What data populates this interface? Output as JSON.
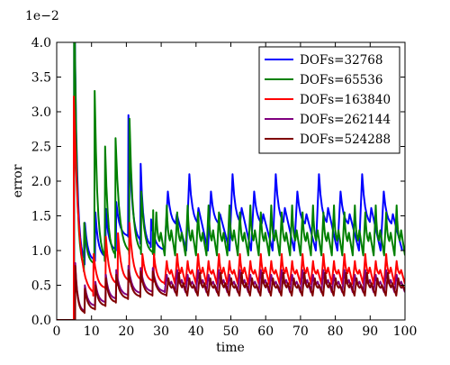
{
  "chart_data": {
    "type": "line",
    "xlabel": "time",
    "ylabel": "error",
    "y_offset_label": "1e−2",
    "xlim": [
      0,
      100
    ],
    "ylim": [
      0,
      4.0
    ],
    "x_ticks": [
      0,
      10,
      20,
      30,
      40,
      50,
      60,
      70,
      80,
      90,
      100
    ],
    "x_tick_labels": [
      "0",
      "10",
      "20",
      "30",
      "40",
      "50",
      "60",
      "70",
      "80",
      "90",
      "100"
    ],
    "y_ticks": [
      0,
      0.5,
      1.0,
      1.5,
      2.0,
      2.5,
      3.0,
      3.5,
      4.0
    ],
    "y_tick_labels": [
      "0.0",
      "0.5",
      "1.0",
      "1.5",
      "2.0",
      "2.5",
      "3.0",
      "3.5",
      "4.0"
    ],
    "grid": false,
    "legend_position": "top-right",
    "series": [
      {
        "name": "DOFs=32768",
        "color": "#0000ff",
        "baseline": [
          0,
          5
        ],
        "first_spike": 5.05,
        "early": {
          "times": [
            8,
            11,
            14,
            17,
            20.5,
            24,
            27
          ],
          "peaks": [
            1.4,
            1.55,
            1.6,
            1.7,
            2.95,
            2.25,
            1.45
          ],
          "mins": [
            0.8,
            0.85,
            0.9,
            1.0,
            1.2,
            1.1,
            1.05
          ]
        },
        "period": 6.2,
        "start": 31,
        "count": 11,
        "peak_a": 1.85,
        "peak_b": 2.1,
        "mid": 1.35,
        "min": 1.0
      },
      {
        "name": "DOFs=65536",
        "color": "#008000",
        "baseline": [
          0,
          5
        ],
        "first_spike": 5.05,
        "early": {
          "times": [
            7.8,
            10.8,
            13.8,
            16.8,
            20.8,
            24.2,
            27.6
          ],
          "peaks": [
            1.4,
            3.3,
            2.5,
            2.62,
            2.9,
            1.85,
            1.58
          ],
          "mins": [
            0.7,
            0.8,
            0.85,
            0.9,
            0.95,
            0.95,
            0.95
          ]
        },
        "period": 3.0,
        "start": 28,
        "count": 24,
        "peak_a": 1.55,
        "peak_b": 1.65,
        "mid": 1.1,
        "min": 0.93
      },
      {
        "name": "DOFs=163840",
        "color": "#ff0000",
        "baseline": [
          0,
          4.9
        ],
        "first_spike": 3.22,
        "early": {
          "times": [
            10.5,
            14,
            17.5,
            20.8,
            24.5,
            27.8
          ],
          "peaks": [
            0.95,
            1.2,
            1.25,
            1.4,
            0.95,
            0.95
          ],
          "mins": [
            0.35,
            0.45,
            0.5,
            0.55,
            0.55,
            0.55
          ]
        },
        "period": 3.0,
        "start": 31,
        "count": 23,
        "peak_a": 0.85,
        "peak_b": 0.95,
        "mid": 0.65,
        "min": 0.52
      },
      {
        "name": "DOFs=262144",
        "color": "#800080",
        "baseline": [
          0,
          5.3
        ],
        "first_spike": 0.82,
        "early": {
          "times": [
            8,
            11,
            14,
            17,
            20.5,
            24,
            27.5
          ],
          "peaks": [
            0.5,
            0.55,
            0.65,
            0.72,
            0.78,
            0.75,
            0.75
          ],
          "mins": [
            0.12,
            0.2,
            0.25,
            0.3,
            0.35,
            0.38,
            0.4
          ]
        },
        "period": 3.0,
        "start": 31,
        "count": 23,
        "peak_a": 0.65,
        "peak_b": 0.72,
        "mid": 0.5,
        "min": 0.4
      },
      {
        "name": "DOFs=524288",
        "color": "#800000",
        "baseline": [
          0,
          5.3
        ],
        "first_spike": 0.78,
        "early": {
          "times": [
            8,
            11,
            14,
            17,
            20.5,
            24,
            27.5
          ],
          "peaks": [
            0.45,
            0.5,
            0.6,
            0.65,
            0.72,
            0.7,
            0.7
          ],
          "mins": [
            0.1,
            0.15,
            0.2,
            0.25,
            0.3,
            0.33,
            0.35
          ]
        },
        "period": 3.0,
        "start": 31.5,
        "count": 23,
        "peak_a": 0.6,
        "peak_b": 0.68,
        "mid": 0.45,
        "min": 0.35
      }
    ]
  }
}
